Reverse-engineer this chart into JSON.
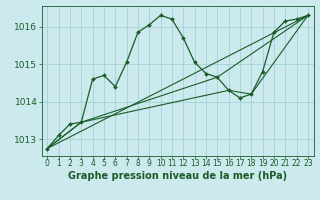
{
  "background_color": "#cce9ee",
  "grid_color": "#9bcdd4",
  "line_color": "#1a5c28",
  "title": "Graphe pression niveau de la mer (hPa)",
  "title_fontsize": 7,
  "xlabel_fontsize": 5.5,
  "ylabel_fontsize": 6.5,
  "xlim": [
    -0.5,
    23.5
  ],
  "ylim": [
    1012.55,
    1016.55
  ],
  "yticks": [
    1013,
    1014,
    1015,
    1016
  ],
  "xticks": [
    0,
    1,
    2,
    3,
    4,
    5,
    6,
    7,
    8,
    9,
    10,
    11,
    12,
    13,
    14,
    15,
    16,
    17,
    18,
    19,
    20,
    21,
    22,
    23
  ],
  "series_main": {
    "x": [
      0,
      1,
      2,
      3,
      4,
      5,
      6,
      7,
      8,
      9,
      10,
      11,
      12,
      13,
      14,
      15,
      16,
      17,
      18,
      19,
      20,
      21,
      22,
      23
    ],
    "y": [
      1012.75,
      1013.1,
      1013.4,
      1013.45,
      1014.6,
      1014.7,
      1014.4,
      1015.05,
      1015.85,
      1016.05,
      1016.3,
      1016.2,
      1015.7,
      1015.05,
      1014.75,
      1014.65,
      1014.3,
      1014.1,
      1014.2,
      1014.8,
      1015.85,
      1016.15,
      1016.2,
      1016.3
    ],
    "marker": "D",
    "markersize": 2.0,
    "linewidth": 0.9
  },
  "series_trend1": {
    "x": [
      0,
      23
    ],
    "y": [
      1012.75,
      1016.3
    ],
    "linewidth": 0.8
  },
  "series_trend2": {
    "x": [
      0,
      3,
      15,
      23
    ],
    "y": [
      1012.75,
      1013.45,
      1014.65,
      1016.3
    ],
    "linewidth": 0.8
  },
  "series_trend3": {
    "x": [
      0,
      3,
      16,
      18,
      23
    ],
    "y": [
      1012.75,
      1013.45,
      1014.3,
      1014.2,
      1016.3
    ],
    "linewidth": 0.8
  }
}
